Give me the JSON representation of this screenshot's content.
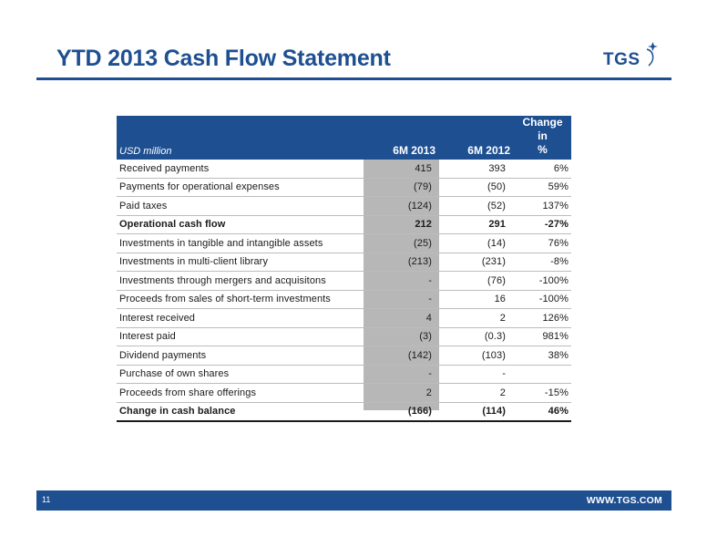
{
  "title": "YTD 2013 Cash Flow Statement",
  "logo_text": "TGS",
  "table": {
    "unit_label": "USD million",
    "col_a": "6M 2013",
    "col_b": "6M 2012",
    "col_c_line1": "Change in",
    "col_c_line2": "%",
    "rows": [
      {
        "label": "Received payments",
        "a": "415",
        "b": "393",
        "c": "6%"
      },
      {
        "label": "Payments for operational expenses",
        "a": "(79)",
        "b": "(50)",
        "c": "59%"
      },
      {
        "label": "Paid taxes",
        "a": "(124)",
        "b": "(52)",
        "c": "137%"
      },
      {
        "label": "Operational cash flow",
        "a": "212",
        "b": "291",
        "c": "-27%"
      },
      {
        "label": "Investments in tangible and intangible assets",
        "a": "(25)",
        "b": "(14)",
        "c": "76%"
      },
      {
        "label": "Investments in multi-client library",
        "a": "(213)",
        "b": "(231)",
        "c": "-8%"
      },
      {
        "label": "Investments through mergers and acquisitons",
        "a": "-",
        "b": "(76)",
        "c": "-100%"
      },
      {
        "label": "Proceeds from sales of short-term investments",
        "a": "-",
        "b": "16",
        "c": "-100%"
      },
      {
        "label": "Interest received",
        "a": "4",
        "b": "2",
        "c": "126%"
      },
      {
        "label": "Interest paid",
        "a": "(3)",
        "b": "(0.3)",
        "c": "981%"
      },
      {
        "label": "Dividend payments",
        "a": "(142)",
        "b": "(103)",
        "c": "38%"
      },
      {
        "label": "Purchase of own shares",
        "a": "-",
        "b": "-",
        "c": ""
      },
      {
        "label": "Proceeds from share offerings",
        "a": "2",
        "b": "2",
        "c": "-15%"
      },
      {
        "label": "Change in cash balance",
        "a": "(166)",
        "b": "(114)",
        "c": "46%"
      }
    ]
  },
  "footer": {
    "page_number": "11",
    "website": "WWW.TGS.COM"
  },
  "colors": {
    "brand_blue": "#1d4f91",
    "shade_grey": "#b7b7b7"
  }
}
